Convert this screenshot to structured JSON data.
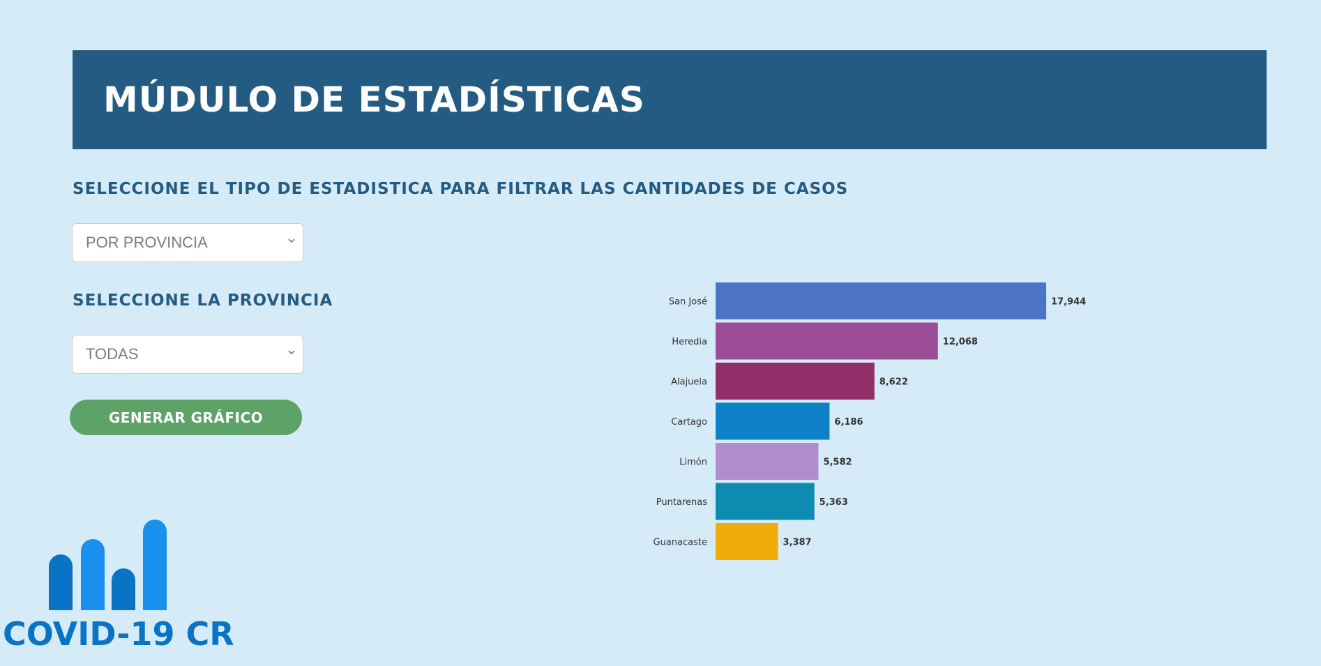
{
  "header": {
    "title": "MÚDULO DE ESTADÍSTICAS"
  },
  "filters": {
    "type_label": "SELECCIONE EL TIPO DE ESTADISTICA PARA FILTRAR LAS CANTIDADES DE CASOS",
    "type_value": "POR PROVINCIA",
    "province_label": "SELECCIONE LA PROVINCIA",
    "province_value": "TODAS",
    "generate_button": "GENERAR GRÁFICO"
  },
  "logo": {
    "text": "COVID-19 CR"
  },
  "chart_data": {
    "type": "bar",
    "orientation": "horizontal",
    "categories": [
      "San José",
      "Heredia",
      "Alajuela",
      "Cartago",
      "Limón",
      "Puntarenas",
      "Guanacaste"
    ],
    "values": [
      17944,
      12068,
      8622,
      6186,
      5582,
      5363,
      3387
    ],
    "value_labels": [
      "17,944",
      "12,068",
      "8,622",
      "6,186",
      "5,582",
      "5,363",
      "3,387"
    ],
    "colors": [
      "#4c74c6",
      "#9b4d97",
      "#912f68",
      "#0e80c6",
      "#b18ecb",
      "#0e8bb0",
      "#efac0b"
    ],
    "xlim": [
      0,
      17944
    ],
    "grid": false,
    "legend": "none"
  }
}
